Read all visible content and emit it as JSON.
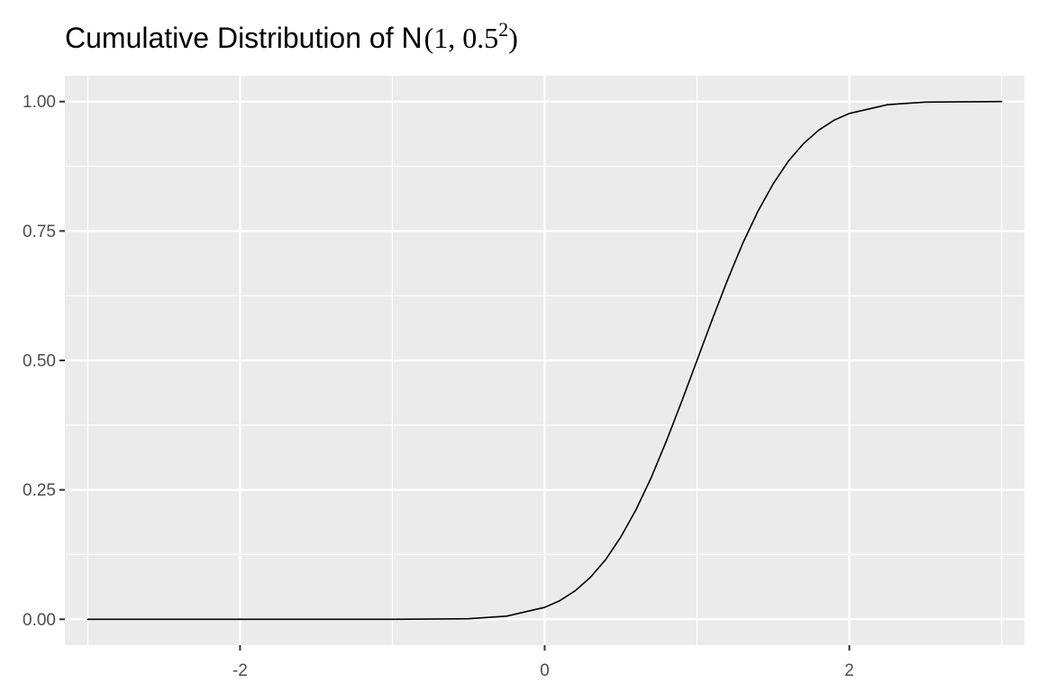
{
  "chart_data": {
    "type": "line",
    "title": {
      "prefix": "Cumulative Distribution of N",
      "open": "(",
      "args": "1, 0.5",
      "exponent": "2",
      "close": ")"
    },
    "xlabel": "",
    "ylabel": "",
    "xlim": [
      -3.15,
      3.15
    ],
    "ylim": [
      -0.05,
      1.05
    ],
    "x_ticks": [
      -2,
      0,
      2
    ],
    "x_tick_labels": [
      "-2",
      "0",
      "2"
    ],
    "x_minor_ticks": [
      -3,
      -1,
      1,
      3
    ],
    "y_ticks": [
      0,
      0.25,
      0.5,
      0.75,
      1
    ],
    "y_tick_labels": [
      "0.00",
      "0.25",
      "0.50",
      "0.75",
      "1.00"
    ],
    "y_minor_ticks": [
      0.125,
      0.375,
      0.625,
      0.875
    ],
    "grid": true,
    "legend": "none",
    "series": [
      {
        "color": "#000000",
        "x": [
          -3,
          -2.5,
          -2,
          -1.5,
          -1,
          -0.5,
          -0.25,
          0,
          0.1,
          0.2,
          0.3,
          0.4,
          0.5,
          0.6,
          0.7,
          0.8,
          0.9,
          1,
          1.1,
          1.2,
          1.3,
          1.4,
          1.5,
          1.6,
          1.7,
          1.8,
          1.9,
          2,
          2.25,
          2.5,
          3
        ],
        "y": [
          0,
          0,
          0,
          0,
          0,
          0.001,
          0.006,
          0.023,
          0.036,
          0.055,
          0.081,
          0.115,
          0.159,
          0.212,
          0.274,
          0.345,
          0.421,
          0.5,
          0.579,
          0.655,
          0.726,
          0.788,
          0.841,
          0.885,
          0.919,
          0.945,
          0.964,
          0.977,
          0.994,
          0.999,
          1
        ]
      }
    ]
  }
}
